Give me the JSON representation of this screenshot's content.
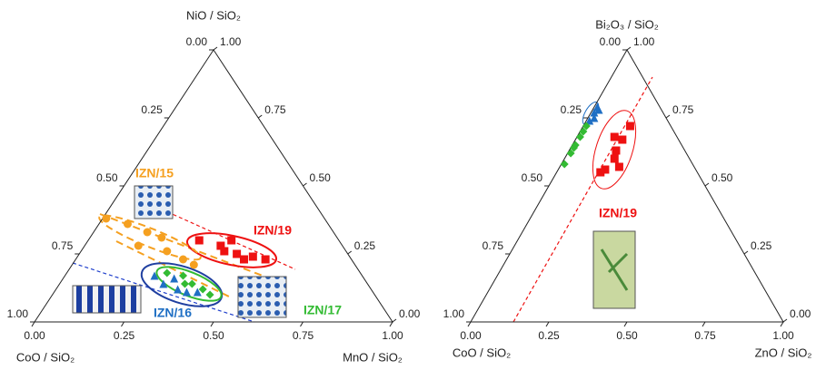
{
  "chart_data": [
    {
      "type": "ternary",
      "top_label": "NiO / SiO₂",
      "left_label": "CoO / SiO₂",
      "right_label": "MnO / SiO₂",
      "left_ticks": [
        {
          "value": 0,
          "label": "0.00"
        },
        {
          "value": 0.25,
          "label": "0.25"
        },
        {
          "value": 0.5,
          "label": "0.50"
        },
        {
          "value": 0.75,
          "label": "0.75"
        },
        {
          "value": 1,
          "label": "1.00"
        }
      ],
      "right_ticks": [
        {
          "value": 1,
          "label": "1.00"
        },
        {
          "value": 0.75,
          "label": "0.75"
        },
        {
          "value": 0.5,
          "label": "0.50"
        },
        {
          "value": 0.25,
          "label": "0.25"
        },
        {
          "value": 0,
          "label": "0.00"
        }
      ],
      "bottom_ticks": [
        {
          "value": 0,
          "label": "0.00"
        },
        {
          "value": 0.25,
          "label": "0.25"
        },
        {
          "value": 0.5,
          "label": "0.50"
        },
        {
          "value": 0.75,
          "label": "0.75"
        },
        {
          "value": 1,
          "label": "1.00"
        }
      ],
      "series": [
        {
          "name": "IZN/15",
          "color": "#f5a020",
          "marker": "circle",
          "a": [
            0.38,
            0.36,
            0.33,
            0.31,
            0.28,
            0.26,
            0.23,
            0.21
          ],
          "c": [
            0.01,
            0.08,
            0.15,
            0.2,
            0.15,
            0.24,
            0.3,
            0.34
          ]
        },
        {
          "name": "IZN/19",
          "color": "#ee1111",
          "marker": "square",
          "a": [
            0.3,
            0.28,
            0.3,
            0.25,
            0.23,
            0.24,
            0.23,
            0.26
          ],
          "c": [
            0.31,
            0.38,
            0.4,
            0.44,
            0.47,
            0.49,
            0.53,
            0.4
          ]
        },
        {
          "name": "IZN/16",
          "color": "#1f6fc4",
          "marker": "triangle",
          "a": [
            0.17,
            0.14,
            0.12,
            0.11,
            0.11,
            0.16
          ],
          "c": [
            0.25,
            0.29,
            0.34,
            0.37,
            0.4,
            0.31
          ]
        },
        {
          "name": "IZN/17",
          "color": "#33bb33",
          "marker": "diamond",
          "a": [
            0.18,
            0.17,
            0.14,
            0.12,
            0.1,
            0.14
          ],
          "c": [
            0.28,
            0.33,
            0.37,
            0.41,
            0.44,
            0.35
          ]
        }
      ]
    },
    {
      "type": "ternary",
      "top_label": "Bi₂O₃ / SiO₂",
      "left_label": "CoO / SiO₂",
      "right_label": "ZnO / SiO₂",
      "left_ticks": [
        {
          "value": 0,
          "label": "0.00"
        },
        {
          "value": 0.25,
          "label": "0.25"
        },
        {
          "value": 0.5,
          "label": "0.50"
        },
        {
          "value": 0.75,
          "label": "0.75"
        },
        {
          "value": 1,
          "label": "1.00"
        }
      ],
      "right_ticks": [
        {
          "value": 1,
          "label": "1.00"
        },
        {
          "value": 0.75,
          "label": "0.75"
        },
        {
          "value": 0.5,
          "label": "0.50"
        },
        {
          "value": 0.25,
          "label": "0.25"
        },
        {
          "value": 0,
          "label": "0.00"
        }
      ],
      "bottom_ticks": [
        {
          "value": 0,
          "label": "0.00"
        },
        {
          "value": 0.25,
          "label": "0.25"
        },
        {
          "value": 0.5,
          "label": "0.50"
        },
        {
          "value": 0.75,
          "label": "0.75"
        },
        {
          "value": 1,
          "label": "1.00"
        }
      ],
      "series": [
        {
          "name": "IZN/19",
          "color": "#ee1111",
          "marker": "square",
          "a": [
            0.72,
            0.67,
            0.68,
            0.63,
            0.6,
            0.57,
            0.56,
            0.55
          ],
          "c": [
            0.15,
            0.15,
            0.12,
            0.15,
            0.16,
            0.19,
            0.15,
            0.14
          ]
        },
        {
          "color": "#1f6fc4",
          "marker": "triangle",
          "a": [
            0.79,
            0.77,
            0.75,
            0.74,
            0.78
          ],
          "c": [
            0.01,
            0.01,
            0.02,
            0.01,
            0.02
          ]
        },
        {
          "color": "#33bb33",
          "marker": "diamond",
          "a": [
            0.72,
            0.68,
            0.65,
            0.62,
            0.58,
            0.7,
            0.64
          ],
          "c": [
            0.01,
            0.01,
            0.01,
            0.01,
            0.01,
            0.01,
            0.01
          ]
        }
      ]
    }
  ]
}
